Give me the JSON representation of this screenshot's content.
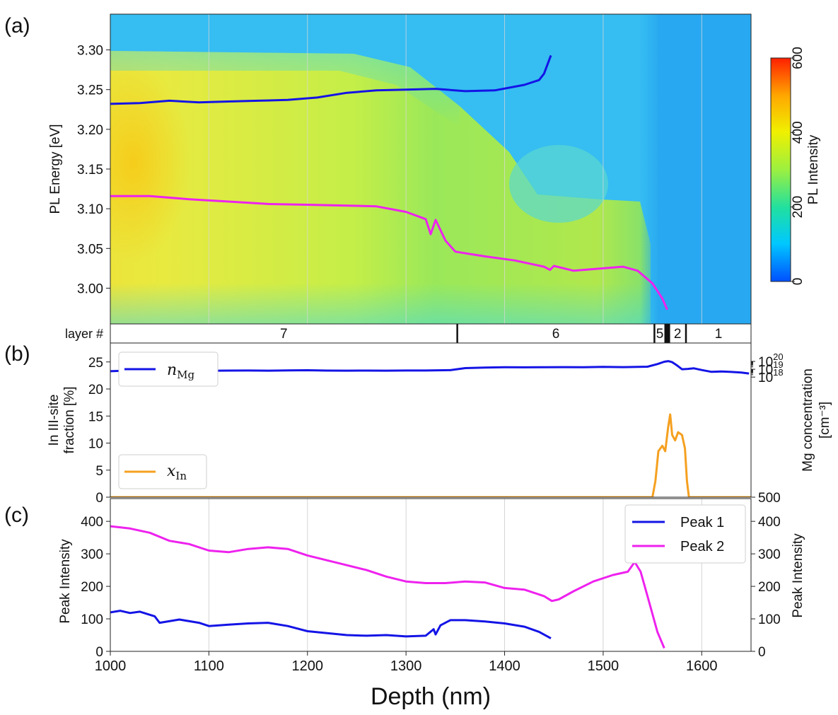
{
  "chart_data": [
    {
      "panel_label": "(a)",
      "type": "heatmap",
      "ylabel": "PL Energy [eV]",
      "xlim": [
        1000,
        1650
      ],
      "ylim": [
        2.955,
        3.345
      ],
      "yticks": [
        "3.30",
        "3.25",
        "3.20",
        "3.15",
        "3.10",
        "3.05",
        "3.00"
      ],
      "ytick_values": [
        3.3,
        3.25,
        3.2,
        3.15,
        3.1,
        3.05,
        3.0
      ],
      "grid": true,
      "colorbar": {
        "label": "PL Intensity",
        "range": [
          0,
          600
        ],
        "ticks": [
          "0",
          "200",
          "400",
          "600"
        ],
        "tick_values": [
          0,
          200,
          400,
          600
        ],
        "colors": [
          "#0050ff",
          "#00c8ff",
          "#20e0a0",
          "#9cf040",
          "#f0f000",
          "#ffa800",
          "#ff2000"
        ]
      },
      "series": [
        {
          "name": "peak1_energy",
          "color": "#1414e6",
          "x": [
            1000,
            1030,
            1060,
            1090,
            1120,
            1150,
            1180,
            1210,
            1240,
            1270,
            1300,
            1330,
            1360,
            1390,
            1420,
            1435,
            1440,
            1447
          ],
          "y": [
            3.232,
            3.233,
            3.236,
            3.234,
            3.235,
            3.236,
            3.237,
            3.24,
            3.246,
            3.249,
            3.25,
            3.251,
            3.248,
            3.249,
            3.256,
            3.262,
            3.27,
            3.293
          ]
        },
        {
          "name": "peak2_energy",
          "color": "#ee22ee",
          "x": [
            1000,
            1040,
            1080,
            1120,
            1160,
            1200,
            1240,
            1270,
            1300,
            1320,
            1325,
            1330,
            1340,
            1350,
            1380,
            1410,
            1440,
            1446,
            1450,
            1470,
            1500,
            1520,
            1535,
            1550,
            1560,
            1565
          ],
          "y": [
            3.116,
            3.116,
            3.112,
            3.109,
            3.106,
            3.105,
            3.104,
            3.103,
            3.096,
            3.087,
            3.068,
            3.086,
            3.06,
            3.046,
            3.04,
            3.035,
            3.027,
            3.023,
            3.028,
            3.022,
            3.025,
            3.027,
            3.022,
            3.006,
            2.987,
            2.973
          ]
        }
      ]
    },
    {
      "type": "table",
      "row_label": "layer #",
      "layers": [
        {
          "label": "7",
          "from": 1000,
          "to": 1352
        },
        {
          "label": "6",
          "from": 1352,
          "to": 1552
        },
        {
          "label": "5",
          "from": 1552,
          "to": 1563
        },
        {
          "label": "2",
          "from": 1567,
          "to": 1584
        },
        {
          "label": "1",
          "from": 1584,
          "to": 1650
        }
      ]
    },
    {
      "panel_label": "(b)",
      "type": "line",
      "ylabel_lines": [
        "In III-site",
        "fraction [%]"
      ],
      "ylim": [
        0,
        28.5
      ],
      "yticks": [
        "0",
        "5",
        "10",
        "15",
        "20",
        "25"
      ],
      "ytick_values": [
        0,
        5,
        10,
        15,
        20,
        25
      ],
      "ylabel_right_lines": [
        "Mg concentration",
        "[cm⁻³]"
      ],
      "ylim_right_log": [
        500,
        1e+20
      ],
      "yticks_right": [
        {
          "mantissa": "500",
          "exponent": "",
          "value": 500
        },
        {
          "mantissa": "10",
          "exponent": "18",
          "value": 1e+18
        },
        {
          "mantissa": "10",
          "exponent": "19",
          "value": 1e+19
        },
        {
          "mantissa": "10",
          "exponent": "20",
          "value": 1e+20
        }
      ],
      "legend": [
        {
          "base": "n",
          "sub": "Mg",
          "color": "#1414e6"
        },
        {
          "base": "x",
          "sub": "In",
          "color": "#f5a020"
        }
      ],
      "series": [
        {
          "name": "n_Mg",
          "color": "#1414e6",
          "axis": "right",
          "x": [
            1000,
            1010,
            1020,
            1030,
            1040,
            1060,
            1080,
            1100,
            1120,
            1140,
            1160,
            1180,
            1200,
            1220,
            1240,
            1260,
            1280,
            1300,
            1320,
            1345,
            1360,
            1380,
            1400,
            1420,
            1440,
            1460,
            1480,
            1500,
            1520,
            1545,
            1555,
            1562,
            1566,
            1570,
            1575,
            1580,
            1586,
            1592,
            1600,
            1610,
            1620,
            1630,
            1640,
            1648
          ],
          "y": [
            5.6e+18,
            6.2e+18,
            5e+18,
            6e+18,
            5.3e+18,
            6.4e+18,
            6.2e+18,
            6.3e+18,
            6.7e+18,
            6.9e+18,
            6.6e+18,
            7e+18,
            7.4e+18,
            6.7e+18,
            6.6e+18,
            6.7e+18,
            6.6e+18,
            6.9e+18,
            6.9e+18,
            7.6e+18,
            1.38e+19,
            1.62e+19,
            1.8e+19,
            1.76e+19,
            1.82e+19,
            1.86e+19,
            1.8e+19,
            2e+19,
            1.86e+19,
            2.1e+19,
            4.5e+19,
            9e+19,
            1.08e+20,
            8e+19,
            3e+19,
            1e+19,
            1.1e+19,
            1.3e+19,
            8e+18,
            4.6e+18,
            5.2e+18,
            4.5e+18,
            3.8e+18,
            2.9e+18
          ]
        },
        {
          "name": "x_In",
          "color": "#f5a020",
          "axis": "left",
          "x": [
            1000,
            1550,
            1553,
            1556,
            1560,
            1563,
            1566,
            1568,
            1570,
            1573,
            1576,
            1580,
            1583,
            1585,
            1587,
            1650
          ],
          "y": [
            0,
            0,
            3,
            8.5,
            9.5,
            8.5,
            13,
            15.3,
            11.5,
            10.5,
            12,
            11.5,
            9,
            3,
            0,
            0
          ]
        }
      ]
    },
    {
      "panel_label": "(c)",
      "type": "line",
      "ylabel": "Peak Intensity",
      "ylabel_right": "Peak Intensity",
      "xlabel": "Depth (nm)",
      "xlim": [
        1000,
        1650
      ],
      "xticks": [
        "1000",
        "1100",
        "1200",
        "1300",
        "1400",
        "1500",
        "1600"
      ],
      "xtick_values": [
        1000,
        1100,
        1200,
        1300,
        1400,
        1500,
        1600
      ],
      "ylim": [
        0,
        470
      ],
      "yticks": [
        "0",
        "100",
        "200",
        "300",
        "400"
      ],
      "ytick_values": [
        0,
        100,
        200,
        300,
        400
      ],
      "grid": true,
      "legend": [
        {
          "name": "Peak 1",
          "color": "#1414e6"
        },
        {
          "name": "Peak 2",
          "color": "#ee22ee"
        }
      ],
      "series": [
        {
          "name": "Peak 1",
          "color": "#1414e6",
          "x": [
            1000,
            1010,
            1020,
            1030,
            1045,
            1050,
            1070,
            1090,
            1100,
            1120,
            1140,
            1160,
            1180,
            1200,
            1220,
            1240,
            1260,
            1280,
            1300,
            1320,
            1328,
            1330,
            1335,
            1345,
            1360,
            1380,
            1400,
            1420,
            1435,
            1447
          ],
          "y": [
            120,
            125,
            118,
            122,
            108,
            88,
            98,
            88,
            78,
            82,
            86,
            88,
            78,
            62,
            56,
            50,
            48,
            50,
            46,
            48,
            68,
            52,
            80,
            96,
            96,
            92,
            86,
            76,
            60,
            40
          ]
        },
        {
          "name": "Peak 2",
          "color": "#ee22ee",
          "x": [
            1000,
            1020,
            1040,
            1060,
            1080,
            1100,
            1120,
            1140,
            1160,
            1180,
            1200,
            1220,
            1240,
            1260,
            1280,
            1300,
            1320,
            1340,
            1360,
            1380,
            1400,
            1420,
            1440,
            1448,
            1455,
            1470,
            1490,
            1510,
            1525,
            1532,
            1538,
            1545,
            1555,
            1562
          ],
          "y": [
            385,
            378,
            365,
            340,
            330,
            310,
            305,
            315,
            320,
            315,
            295,
            280,
            265,
            250,
            230,
            215,
            210,
            210,
            215,
            212,
            195,
            190,
            170,
            155,
            160,
            185,
            215,
            235,
            245,
            275,
            245,
            170,
            60,
            10
          ]
        }
      ]
    }
  ]
}
